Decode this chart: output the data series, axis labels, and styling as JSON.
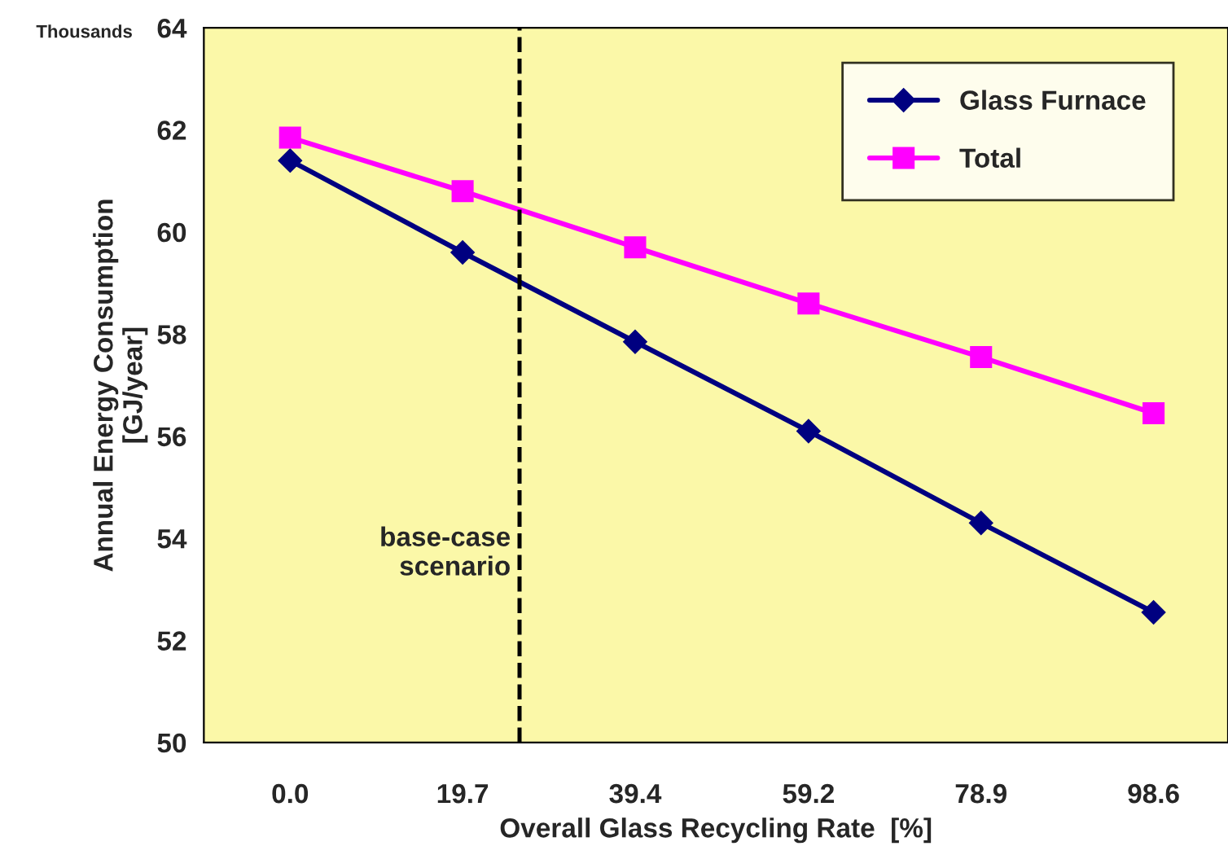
{
  "chart_data": {
    "type": "line",
    "xlabel": "Overall Glass Recycling Rate  [%]",
    "ylabel": "Annual Energy Consumption\n[GJ/year]",
    "x": [
      0.0,
      19.7,
      39.4,
      59.2,
      78.9,
      98.6
    ],
    "series": [
      {
        "name": "Glass Furnace",
        "color": "#000080",
        "marker": "diamond",
        "values": [
          61.4,
          59.6,
          57.85,
          56.1,
          54.3,
          52.55
        ]
      },
      {
        "name": "Total",
        "color": "#ff00ff",
        "marker": "square",
        "values": [
          61.85,
          60.8,
          59.7,
          58.6,
          57.55,
          56.45
        ]
      }
    ],
    "xlim": [
      -9.85,
      107.1
    ],
    "xticks": [
      {
        "value": 0.0,
        "label": "0.0"
      },
      19.7,
      39.4,
      59.2,
      78.9,
      98.6
    ],
    "ylim": [
      50,
      64
    ],
    "yticks": [
      50,
      52,
      54,
      56,
      58,
      60,
      62,
      64
    ],
    "ref_lines": [
      {
        "axis": "x",
        "value": 26.2,
        "label": "base-case\nscenario",
        "color": "#000000",
        "line_style": "dashed"
      }
    ],
    "annotations": [
      "Thousands"
    ],
    "grid": false,
    "legend": "top right",
    "line_style": "solid"
  }
}
